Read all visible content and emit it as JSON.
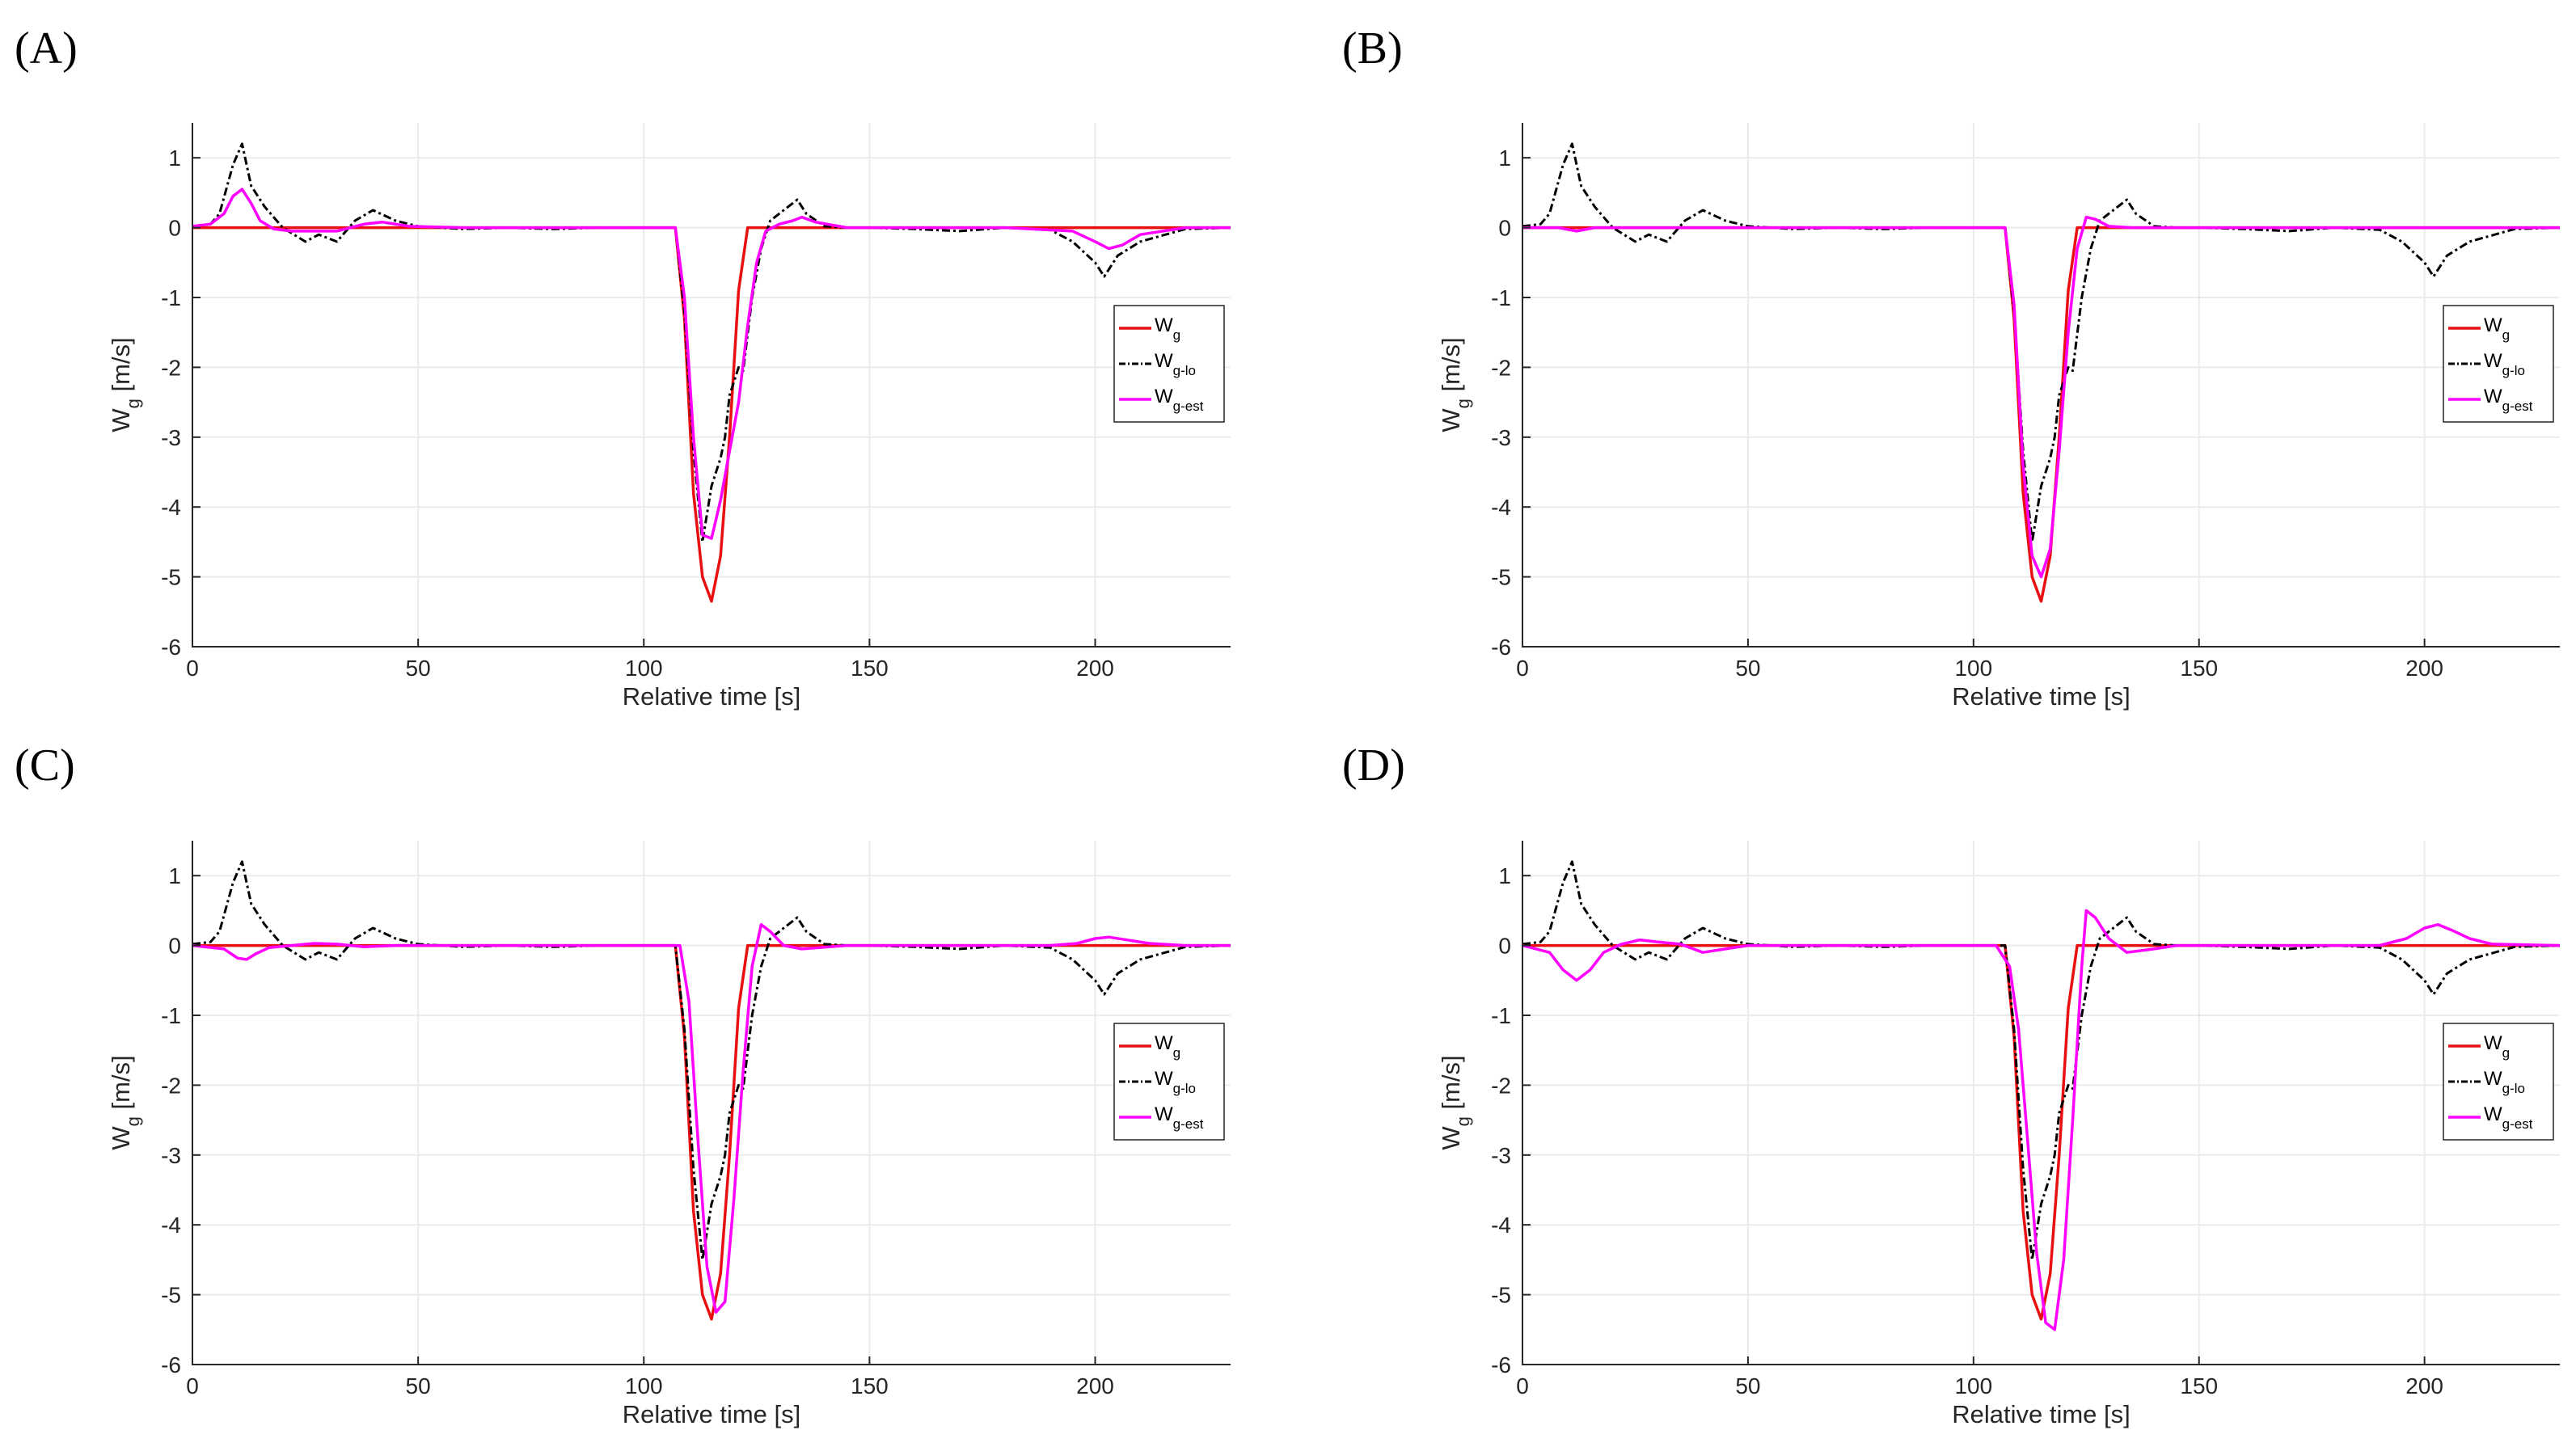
{
  "figure_title": "",
  "chart_data": [
    {
      "panel": "(A)",
      "type": "line",
      "xlabel": "Relative time [s]",
      "ylabel": {
        "main": "W",
        "sub": "g",
        "unit": " [m/s]"
      },
      "xlim": [
        0,
        230
      ],
      "ylim": [
        -6,
        1.5
      ],
      "xticks": [
        0,
        50,
        100,
        150,
        200
      ],
      "yticks": [
        -6,
        -5,
        -4,
        -3,
        -2,
        -1,
        0,
        1
      ],
      "grid": true,
      "legend_position": "right",
      "series": [
        {
          "name": "W",
          "sub": "g",
          "color": "#e81010",
          "dash": "solid",
          "x": [
            0,
            107,
            109,
            111,
            113,
            115,
            117,
            119,
            121,
            123,
            230
          ],
          "y": [
            0,
            0,
            -1.3,
            -3.8,
            -5.0,
            -5.35,
            -4.7,
            -3.0,
            -0.9,
            0,
            0
          ]
        },
        {
          "name": "W",
          "sub": "g-lo",
          "color": "#000000",
          "dash": "dashdot",
          "x": [
            0,
            4,
            6,
            9,
            11,
            13,
            16,
            20,
            25,
            28,
            32,
            36,
            40,
            45,
            50,
            60,
            70,
            80,
            90,
            107,
            109,
            111,
            113,
            115,
            117,
            118,
            119,
            121,
            122,
            124,
            126,
            128,
            131,
            134,
            136,
            140,
            145,
            150,
            160,
            170,
            180,
            190,
            195,
            200,
            202,
            205,
            210,
            220,
            230
          ],
          "y": [
            0.02,
            0.05,
            0.2,
            0.9,
            1.2,
            0.6,
            0.3,
            0.0,
            -0.2,
            -0.1,
            -0.2,
            0.1,
            0.25,
            0.1,
            0.02,
            -0.02,
            0.0,
            -0.02,
            0.0,
            0.0,
            -1.2,
            -3.2,
            -4.5,
            -3.7,
            -3.3,
            -3.0,
            -2.4,
            -2.0,
            -2.05,
            -1.0,
            -0.3,
            0.1,
            0.25,
            0.4,
            0.2,
            0.02,
            0.0,
            0.0,
            -0.02,
            -0.05,
            0.0,
            -0.03,
            -0.2,
            -0.5,
            -0.7,
            -0.4,
            -0.2,
            -0.02,
            0.0
          ]
        },
        {
          "name": "W",
          "sub": "g-est",
          "color": "#ff00ff",
          "dash": "solid",
          "x": [
            0,
            4,
            7,
            9,
            11,
            13,
            15,
            18,
            22,
            27,
            32,
            38,
            42,
            48,
            60,
            107,
            109,
            111,
            113,
            115,
            117,
            119,
            121,
            123,
            125,
            127,
            130,
            133,
            135,
            138,
            145,
            160,
            180,
            195,
            200,
            203,
            206,
            210,
            220,
            230
          ],
          "y": [
            0.02,
            0.05,
            0.2,
            0.45,
            0.55,
            0.35,
            0.1,
            -0.02,
            -0.05,
            -0.05,
            -0.05,
            0.05,
            0.08,
            0.02,
            0.0,
            0.0,
            -1.0,
            -3.0,
            -4.4,
            -4.45,
            -3.9,
            -3.2,
            -2.5,
            -1.4,
            -0.5,
            -0.05,
            0.05,
            0.1,
            0.15,
            0.08,
            0.0,
            0.0,
            0.0,
            -0.05,
            -0.2,
            -0.3,
            -0.25,
            -0.1,
            0.0,
            0.0
          ]
        }
      ]
    },
    {
      "panel": "(B)",
      "type": "line",
      "xlabel": "Relative time [s]",
      "ylabel": {
        "main": "W",
        "sub": "g",
        "unit": " [m/s]"
      },
      "xlim": [
        0,
        230
      ],
      "ylim": [
        -6,
        1.5
      ],
      "xticks": [
        0,
        50,
        100,
        150,
        200
      ],
      "yticks": [
        -6,
        -5,
        -4,
        -3,
        -2,
        -1,
        0,
        1
      ],
      "grid": true,
      "legend_position": "right",
      "series": [
        {
          "name": "W",
          "sub": "g",
          "color": "#e81010",
          "dash": "solid",
          "x": [
            0,
            107,
            109,
            111,
            113,
            115,
            117,
            119,
            121,
            123,
            230
          ],
          "y": [
            0,
            0,
            -1.3,
            -3.8,
            -5.0,
            -5.35,
            -4.7,
            -3.0,
            -0.9,
            0,
            0
          ]
        },
        {
          "name": "W",
          "sub": "g-lo",
          "color": "#000000",
          "dash": "dashdot",
          "x": [
            0,
            4,
            6,
            9,
            11,
            13,
            16,
            20,
            25,
            28,
            32,
            36,
            40,
            45,
            50,
            60,
            70,
            80,
            90,
            107,
            109,
            111,
            113,
            115,
            117,
            118,
            119,
            121,
            122,
            124,
            126,
            128,
            131,
            134,
            136,
            140,
            145,
            150,
            160,
            170,
            180,
            190,
            195,
            200,
            202,
            205,
            210,
            220,
            230
          ],
          "y": [
            0.02,
            0.05,
            0.2,
            0.9,
            1.2,
            0.6,
            0.3,
            0.0,
            -0.2,
            -0.1,
            -0.2,
            0.1,
            0.25,
            0.1,
            0.02,
            -0.02,
            0.0,
            -0.02,
            0.0,
            0.0,
            -1.2,
            -3.2,
            -4.5,
            -3.7,
            -3.3,
            -3.0,
            -2.4,
            -2.0,
            -2.05,
            -1.0,
            -0.3,
            0.1,
            0.25,
            0.4,
            0.2,
            0.02,
            0.0,
            0.0,
            -0.02,
            -0.05,
            0.0,
            -0.03,
            -0.2,
            -0.5,
            -0.7,
            -0.4,
            -0.2,
            -0.02,
            0.0
          ]
        },
        {
          "name": "W",
          "sub": "g-est",
          "color": "#ff00ff",
          "dash": "solid",
          "x": [
            0,
            8,
            12,
            16,
            20,
            50,
            107,
            109,
            111,
            113,
            115,
            117,
            119,
            121,
            123,
            125,
            127,
            130,
            135,
            150,
            200,
            230
          ],
          "y": [
            0,
            0,
            -0.05,
            0.0,
            0.0,
            0.0,
            0.0,
            -1.1,
            -3.4,
            -4.7,
            -5.0,
            -4.6,
            -3.2,
            -1.5,
            -0.3,
            0.15,
            0.12,
            0.02,
            0.0,
            0.0,
            0.0,
            0.0
          ]
        }
      ]
    },
    {
      "panel": "(C)",
      "type": "line",
      "xlabel": "Relative time [s]",
      "ylabel": {
        "main": "W",
        "sub": "g",
        "unit": " [m/s]"
      },
      "xlim": [
        0,
        230
      ],
      "ylim": [
        -6,
        1.5
      ],
      "xticks": [
        0,
        50,
        100,
        150,
        200
      ],
      "yticks": [
        -6,
        -5,
        -4,
        -3,
        -2,
        -1,
        0,
        1
      ],
      "grid": true,
      "legend_position": "right",
      "series": [
        {
          "name": "W",
          "sub": "g",
          "color": "#e81010",
          "dash": "solid",
          "x": [
            0,
            107,
            109,
            111,
            113,
            115,
            117,
            119,
            121,
            123,
            230
          ],
          "y": [
            0,
            0,
            -1.3,
            -3.8,
            -5.0,
            -5.35,
            -4.7,
            -3.0,
            -0.9,
            0,
            0
          ]
        },
        {
          "name": "W",
          "sub": "g-lo",
          "color": "#000000",
          "dash": "dashdot",
          "x": [
            0,
            4,
            6,
            9,
            11,
            13,
            16,
            20,
            25,
            28,
            32,
            36,
            40,
            45,
            50,
            60,
            70,
            80,
            90,
            107,
            109,
            111,
            113,
            115,
            117,
            118,
            119,
            121,
            122,
            124,
            126,
            128,
            131,
            134,
            136,
            140,
            145,
            150,
            160,
            170,
            180,
            190,
            195,
            200,
            202,
            205,
            210,
            220,
            230
          ],
          "y": [
            0.02,
            0.05,
            0.2,
            0.9,
            1.2,
            0.6,
            0.3,
            0.0,
            -0.2,
            -0.1,
            -0.2,
            0.1,
            0.25,
            0.1,
            0.02,
            -0.02,
            0.0,
            -0.02,
            0.0,
            0.0,
            -1.2,
            -3.2,
            -4.5,
            -3.7,
            -3.3,
            -3.0,
            -2.4,
            -2.0,
            -2.05,
            -1.0,
            -0.3,
            0.1,
            0.25,
            0.4,
            0.2,
            0.02,
            0.0,
            0.0,
            -0.02,
            -0.05,
            0.0,
            -0.03,
            -0.2,
            -0.5,
            -0.7,
            -0.4,
            -0.2,
            -0.02,
            0.0
          ]
        },
        {
          "name": "W",
          "sub": "g-est",
          "color": "#ff00ff",
          "dash": "solid",
          "x": [
            0,
            7,
            10,
            12,
            14,
            17,
            22,
            27,
            32,
            38,
            45,
            55,
            108,
            110,
            112,
            114,
            116,
            118,
            120,
            122,
            124,
            126,
            128,
            131,
            135,
            145,
            190,
            196,
            200,
            203,
            207,
            212,
            220,
            230
          ],
          "y": [
            0,
            -0.05,
            -0.18,
            -0.2,
            -0.12,
            -0.03,
            0.0,
            0.03,
            0.02,
            -0.02,
            0.0,
            0.0,
            0.0,
            -0.8,
            -2.8,
            -4.6,
            -5.25,
            -5.1,
            -3.6,
            -1.8,
            -0.3,
            0.3,
            0.2,
            0.0,
            -0.05,
            0.0,
            0.0,
            0.03,
            0.1,
            0.12,
            0.08,
            0.03,
            0.0,
            0.0
          ]
        }
      ]
    },
    {
      "panel": "(D)",
      "type": "line",
      "xlabel": "Relative time [s]",
      "ylabel": {
        "main": "W",
        "sub": "g",
        "unit": " [m/s]"
      },
      "xlim": [
        0,
        230
      ],
      "ylim": [
        -6,
        1.5
      ],
      "xticks": [
        0,
        50,
        100,
        150,
        200
      ],
      "yticks": [
        -6,
        -5,
        -4,
        -3,
        -2,
        -1,
        0,
        1
      ],
      "grid": true,
      "legend_position": "right",
      "series": [
        {
          "name": "W",
          "sub": "g",
          "color": "#e81010",
          "dash": "solid",
          "x": [
            0,
            107,
            109,
            111,
            113,
            115,
            117,
            119,
            121,
            123,
            230
          ],
          "y": [
            0,
            0,
            -1.3,
            -3.8,
            -5.0,
            -5.35,
            -4.7,
            -3.0,
            -0.9,
            0,
            0
          ]
        },
        {
          "name": "W",
          "sub": "g-lo",
          "color": "#000000",
          "dash": "dashdot",
          "x": [
            0,
            4,
            6,
            9,
            11,
            13,
            16,
            20,
            25,
            28,
            32,
            36,
            40,
            45,
            50,
            60,
            70,
            80,
            90,
            107,
            109,
            111,
            113,
            115,
            117,
            118,
            119,
            121,
            122,
            124,
            126,
            128,
            131,
            134,
            136,
            140,
            145,
            150,
            160,
            170,
            180,
            190,
            195,
            200,
            202,
            205,
            210,
            220,
            230
          ],
          "y": [
            0.02,
            0.05,
            0.2,
            0.9,
            1.2,
            0.6,
            0.3,
            0.0,
            -0.2,
            -0.1,
            -0.2,
            0.1,
            0.25,
            0.1,
            0.02,
            -0.02,
            0.0,
            -0.02,
            0.0,
            0.0,
            -1.2,
            -3.2,
            -4.5,
            -3.7,
            -3.3,
            -3.0,
            -2.4,
            -2.0,
            -2.05,
            -1.0,
            -0.3,
            0.1,
            0.25,
            0.4,
            0.2,
            0.02,
            0.0,
            0.0,
            -0.02,
            -0.05,
            0.0,
            -0.03,
            -0.2,
            -0.5,
            -0.7,
            -0.4,
            -0.2,
            -0.02,
            0.0
          ]
        },
        {
          "name": "W",
          "sub": "g-est",
          "color": "#ff00ff",
          "dash": "solid",
          "x": [
            0,
            6,
            9,
            12,
            15,
            18,
            22,
            26,
            30,
            35,
            40,
            45,
            50,
            60,
            105,
            108,
            110,
            112,
            114,
            116,
            118,
            120,
            122,
            124,
            125,
            127,
            130,
            134,
            140,
            145,
            160,
            190,
            196,
            200,
            203,
            206,
            210,
            215,
            230
          ],
          "y": [
            0,
            -0.1,
            -0.35,
            -0.5,
            -0.35,
            -0.1,
            0.02,
            0.08,
            0.05,
            0.02,
            -0.1,
            -0.05,
            0.0,
            0.0,
            0.0,
            -0.3,
            -1.2,
            -2.8,
            -4.4,
            -5.4,
            -5.5,
            -4.5,
            -2.5,
            -0.3,
            0.5,
            0.4,
            0.1,
            -0.1,
            -0.05,
            0.0,
            0.0,
            0.0,
            0.1,
            0.25,
            0.3,
            0.22,
            0.1,
            0.02,
            0.0
          ]
        }
      ]
    }
  ]
}
